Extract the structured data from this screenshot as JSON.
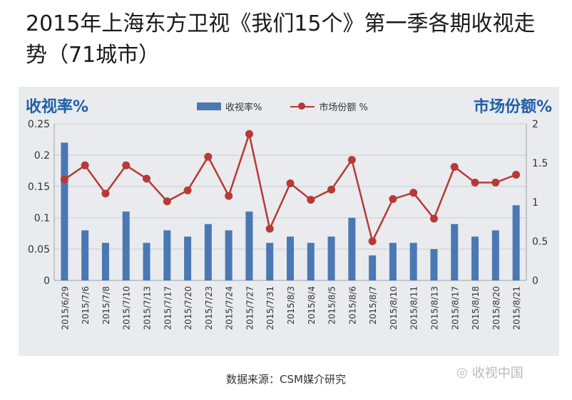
{
  "title": "2015年上海东方卫视《我们15个》第一季各期收视走势（71城市）",
  "source": "数据来源：CSM媒介研究",
  "watermark": "收视中国",
  "watermark_icon": "wechat-icon",
  "colors": {
    "bar": "#4a78b3",
    "line": "#b63a35",
    "axis_title": "#1f5ea8",
    "panel": "#e9ebee"
  },
  "chart_data": {
    "type": "bar",
    "left_axis_title": "收视率%",
    "right_axis_title": "市场份额%",
    "categories": [
      "2015/6/29",
      "2015/7/6",
      "2015/7/8",
      "2015/7/10",
      "2015/7/13",
      "2015/7/17",
      "2015/7/20",
      "2015/7/23",
      "2015/7/24",
      "2015/7/27",
      "2015/7/31",
      "2015/8/3",
      "2015/8/4",
      "2015/8/5",
      "2015/8/6",
      "2015/8/7",
      "2015/8/10",
      "2015/8/11",
      "2015/8/13",
      "2015/8/17",
      "2015/8/18",
      "2015/8/20",
      "2015/8/21"
    ],
    "series": [
      {
        "name": "收视率%",
        "type": "bar",
        "axis": "left",
        "values": [
          0.22,
          0.08,
          0.06,
          0.11,
          0.06,
          0.08,
          0.07,
          0.09,
          0.08,
          0.11,
          0.06,
          0.07,
          0.06,
          0.07,
          0.1,
          0.04,
          0.06,
          0.06,
          0.05,
          0.09,
          0.07,
          0.08,
          0.12
        ]
      },
      {
        "name": "市场份额 %",
        "type": "line",
        "axis": "right",
        "values": [
          1.29,
          1.47,
          1.11,
          1.47,
          1.3,
          1.01,
          1.15,
          1.58,
          1.08,
          1.87,
          0.66,
          1.24,
          1.03,
          1.16,
          1.54,
          0.5,
          1.04,
          1.12,
          0.79,
          1.45,
          1.25,
          1.25,
          1.35
        ]
      }
    ],
    "left_ylim": [
      0,
      0.25
    ],
    "left_ticks": [
      "0",
      "0.05",
      "0.1",
      "0.15",
      "0.2",
      "0.25"
    ],
    "right_ylim": [
      0,
      2
    ],
    "right_ticks": [
      "0",
      "0.5",
      "1",
      "1.5",
      "2"
    ],
    "grid": true,
    "legend_position": "top-center"
  }
}
